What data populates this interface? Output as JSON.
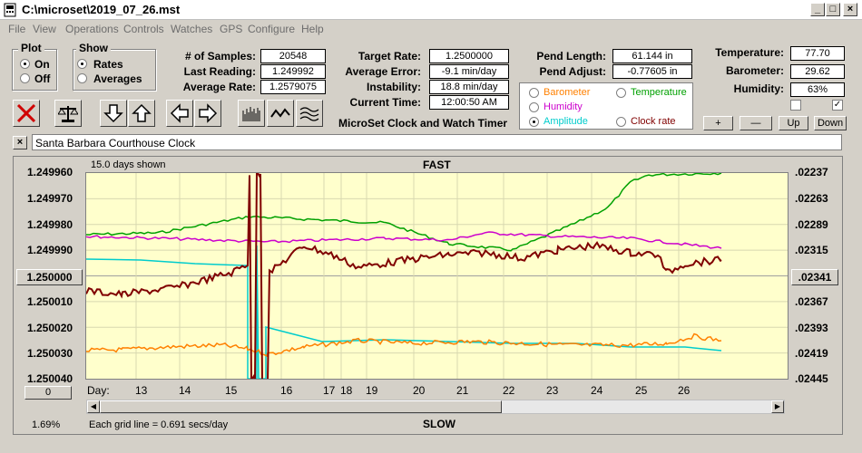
{
  "window": {
    "title": "C:\\microset\\2019_07_26.mst"
  },
  "menu": [
    "File",
    "View",
    "Operations",
    "Controls",
    "Watches",
    "GPS",
    "Configure",
    "Help"
  ],
  "plot_group": {
    "title": "Plot",
    "options": [
      "On",
      "Off"
    ],
    "selected": "On"
  },
  "show_group": {
    "title": "Show",
    "options": [
      "Rates",
      "Averages"
    ],
    "selected": "Rates"
  },
  "stats": {
    "samples_label": "# of Samples:",
    "samples": "20548",
    "last_label": "Last Reading:",
    "last": "1.249992",
    "avg_label": "Average Rate:",
    "avg": "1.2579075"
  },
  "rates": {
    "target_label": "Target Rate:",
    "target": "1.2500000",
    "error_label": "Average Error:",
    "error": "-9.1 min/day",
    "instab_label": "Instability:",
    "instab": "18.8 min/day",
    "time_label": "Current Time:",
    "time": "12:00:50 AM"
  },
  "pend": {
    "length_label": "Pend Length:",
    "length": "61.144 in",
    "adjust_label": "Pend Adjust:",
    "adjust": "-0.77605 in"
  },
  "env": {
    "temp_label": "Temperature:",
    "temp": "77.70",
    "baro_label": "Barometer:",
    "baro": "29.62",
    "hum_label": "Humidity:",
    "hum": "63%"
  },
  "env_buttons": [
    "+",
    "—",
    "Up",
    "Down"
  ],
  "app_name": "MicroSet Clock and Watch Timer",
  "legend": [
    {
      "label": "Barometer",
      "color": "#ff8000"
    },
    {
      "label": "Temperature",
      "color": "#00a000"
    },
    {
      "label": "Humidity",
      "color": "#cc00cc"
    },
    {
      "label": "Amplitude",
      "color": "#00cccc"
    },
    {
      "label": "Clock rate",
      "color": "#800000"
    }
  ],
  "clock_name": "Santa Barbara Courthouse Clock",
  "chart": {
    "days_shown": "15.0 days shown",
    "top_label": "FAST",
    "bottom_label": "SLOW",
    "left_ticks": [
      "1.249960",
      "1.249970",
      "1.249980",
      "1.249990",
      "1.250000",
      "1.250010",
      "1.250020",
      "1.250030",
      "1.250040"
    ],
    "right_ticks": [
      ".02237",
      ".02263",
      ".02289",
      ".02315",
      ".02341",
      ".02367",
      ".02393",
      ".02419",
      ".02445"
    ],
    "left_center_btn": "1.250000",
    "right_center_btn": ".02341",
    "zero_btn": "0",
    "day_label": "Day:",
    "days": [
      "13",
      "14",
      "15",
      "16",
      "17",
      "18",
      "19",
      "20",
      "21",
      "22",
      "23",
      "24",
      "25",
      "26"
    ],
    "zoom": "1.69%",
    "grid_note": "Each grid line = 0.691 secs/day"
  }
}
